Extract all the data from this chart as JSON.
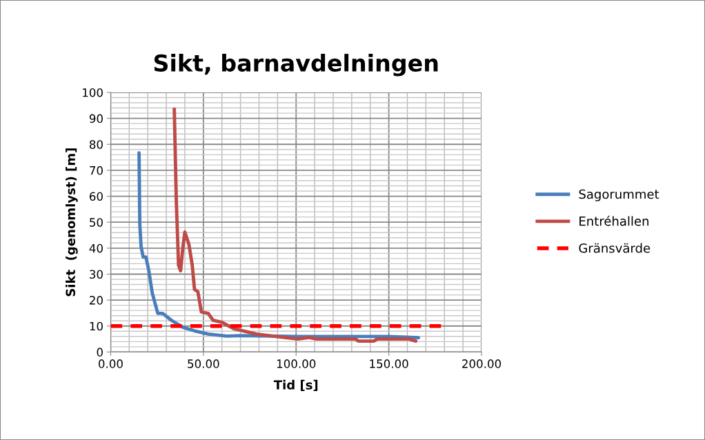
{
  "chart_data": {
    "type": "line",
    "title": "Sikt, barnavdelningen",
    "xlabel": "Tid [s]",
    "ylabel": "Sikt  (genomlyst) [m]",
    "xlim": [
      0,
      200
    ],
    "xticks": [
      {
        "value": 0,
        "label": "0.00"
      },
      {
        "value": 50,
        "label": "50.00"
      },
      {
        "value": 100,
        "label": "100.00"
      },
      {
        "value": 150,
        "label": "150.00"
      },
      {
        "value": 200,
        "label": "200.00"
      }
    ],
    "ylim": [
      0,
      100
    ],
    "yticks": [
      0,
      10,
      20,
      30,
      40,
      50,
      60,
      70,
      80,
      90,
      100
    ],
    "grid": true,
    "legend": "right",
    "marker": "none",
    "series": [
      {
        "name": "Sagorummet",
        "color": "#4a7ebb",
        "line_style": "solid",
        "x": [
          15.3,
          15.7,
          16.4,
          17.5,
          19,
          20.5,
          22.4,
          25.4,
          28,
          32.8,
          39,
          45,
          52.6,
          62.7,
          70,
          80,
          90,
          100,
          110,
          120,
          130,
          140,
          150,
          160,
          166
        ],
        "values": [
          76.7,
          49.3,
          40.6,
          36.6,
          36.6,
          31.6,
          22.8,
          14.9,
          14.9,
          12.2,
          9.5,
          8.2,
          6.9,
          6.1,
          6.3,
          6.2,
          6.1,
          6.0,
          6.0,
          6.0,
          6.0,
          6.0,
          6.0,
          5.7,
          5.5
        ]
      },
      {
        "name": "Entréhallen",
        "color": "#be4b48",
        "line_style": "solid",
        "x": [
          34.3,
          35.4,
          36.6,
          37.7,
          39,
          40,
          42.2,
          44,
          45.2,
          47,
          48.9,
          52.6,
          55.2,
          60.1,
          66.4,
          78.7,
          91.4,
          101,
          107,
          111,
          132,
          133.6,
          142,
          143.7,
          161,
          164.6
        ],
        "values": [
          93.6,
          58,
          33.4,
          31.3,
          40.6,
          46.2,
          41.4,
          33.4,
          24.1,
          23.3,
          15.4,
          14.9,
          12.2,
          11.4,
          9.0,
          6.9,
          5.8,
          5.0,
          5.6,
          5.0,
          5.0,
          4.2,
          4.2,
          5.0,
          5.0,
          4.2
        ]
      },
      {
        "name": "Gränsvärde",
        "color": "#ff0000",
        "line_style": "dashed",
        "x": [
          0,
          180
        ],
        "values": [
          10,
          10
        ]
      }
    ]
  }
}
